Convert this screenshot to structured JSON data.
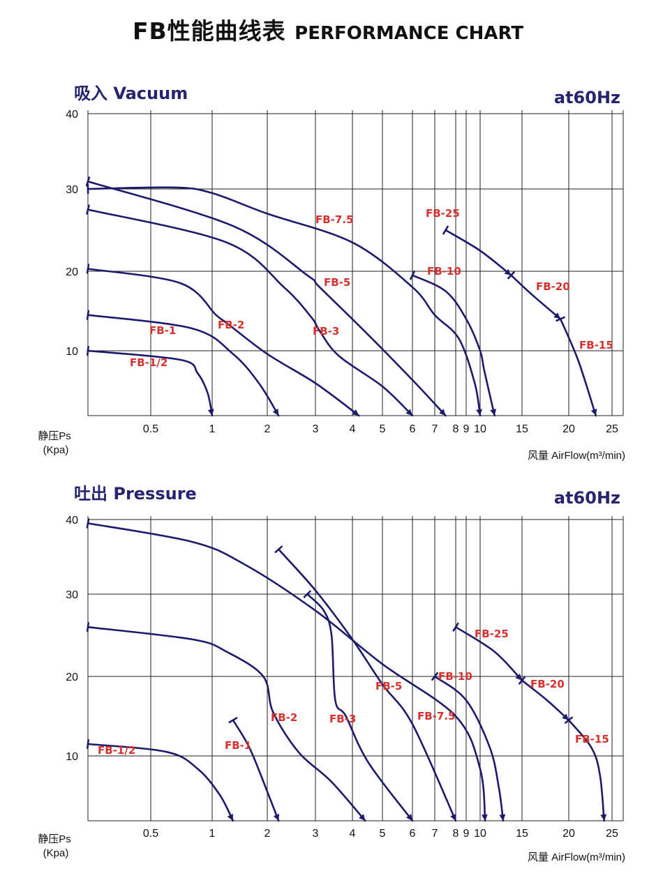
{
  "title": {
    "cn": "FB性能曲线表",
    "en": "PERFORMANCE CHART"
  },
  "chart_data": [
    {
      "type": "line",
      "title": "吸入 Vacuum",
      "subtitle": "at60Hz",
      "ylabel": "静压Ps",
      "yunit": "(Kpa)",
      "xlabel": "风量 AirFlow(m³/min)",
      "ylim": [
        0,
        40
      ],
      "yticks": [
        10,
        20,
        30,
        40
      ],
      "xticks": [
        "0.5",
        "1",
        "2",
        "3",
        "4",
        "5",
        "6",
        "7",
        "8",
        "9",
        "10",
        "15",
        "20",
        "25"
      ],
      "x_scale": "log",
      "series": [
        {
          "name": "FB-1/2",
          "x": [
            0.4,
            0.7,
            0.85,
            0.95,
            1.0
          ],
          "y": [
            10,
            8.6,
            6.5,
            3.5,
            0
          ]
        },
        {
          "name": "FB-1",
          "x": [
            0.4,
            0.8,
            1.3,
            1.8,
            2.2
          ],
          "y": [
            14.5,
            12.8,
            9.5,
            5.0,
            0
          ]
        },
        {
          "name": "FB-2",
          "x": [
            0.4,
            0.7,
            1.05,
            1.2,
            2.0,
            3.0,
            4.2
          ],
          "y": [
            20.3,
            18.5,
            14.5,
            13.5,
            9.5,
            5.0,
            0
          ]
        },
        {
          "name": "FB-3",
          "x": [
            0.4,
            1.2,
            2.3,
            2.9,
            3.1,
            3.6,
            5.0,
            6.0
          ],
          "y": [
            27.5,
            23.5,
            18.0,
            14.2,
            12.5,
            9.2,
            4.5,
            0
          ]
        },
        {
          "name": "FB-5",
          "x": [
            0.4,
            1.3,
            2.8,
            3.1,
            4.5,
            6.0,
            7.5
          ],
          "y": [
            31,
            25.5,
            19.5,
            18.0,
            12.0,
            5.5,
            0
          ]
        },
        {
          "name": "FB-7.5",
          "x": [
            0.4,
            0.65,
            1.0,
            2.0,
            4.0,
            6.0,
            7.0,
            8.3,
            9.6,
            10.0
          ],
          "y": [
            30,
            30.2,
            29.5,
            27.0,
            23.5,
            18.0,
            14.5,
            11.5,
            5.0,
            0
          ]
        },
        {
          "name": "FB-10",
          "x": [
            6.0,
            7.5,
            9.0,
            10.0,
            10.4,
            11.5
          ],
          "y": [
            19.5,
            17.5,
            14.0,
            10.0,
            7.0,
            0
          ]
        },
        {
          "name": "FB-15",
          "x": [
            19.0,
            21.0,
            23.0
          ],
          "y": [
            14.0,
            8.5,
            0
          ]
        },
        {
          "name": "FB-20",
          "x": [
            13.5,
            16.0,
            19.0
          ],
          "y": [
            19.5,
            17.0,
            14.0
          ]
        },
        {
          "name": "FB-25",
          "x": [
            7.5,
            10.0,
            13.5
          ],
          "y": [
            25.0,
            22.5,
            19.5
          ]
        }
      ]
    },
    {
      "type": "line",
      "title": "吐出 Pressure",
      "subtitle": "at60Hz",
      "ylabel": "静压Ps",
      "yunit": "(Kpa)",
      "xlabel": "风量 AirFlow(m³/min)",
      "ylim": [
        0,
        40
      ],
      "yticks": [
        10,
        20,
        30,
        40
      ],
      "xticks": [
        "0.5",
        "1",
        "2",
        "3",
        "4",
        "5",
        "6",
        "7",
        "8",
        "9",
        "10",
        "15",
        "20",
        "25"
      ],
      "x_scale": "log",
      "series": [
        {
          "name": "FB-1/2",
          "x": [
            0.4,
            0.6,
            0.85,
            1.1,
            1.3
          ],
          "y": [
            11.5,
            10.5,
            8.0,
            4.0,
            0
          ]
        },
        {
          "name": "FB-1",
          "x": [
            1.3,
            1.6,
            2.0,
            2.2
          ],
          "y": [
            14.5,
            11.0,
            4.5,
            0
          ]
        },
        {
          "name": "FB-2",
          "x": [
            0.4,
            0.8,
            1.2,
            1.9,
            2.1,
            2.6,
            3.4,
            4.4
          ],
          "y": [
            26,
            24.5,
            23.0,
            20.0,
            15.5,
            10.5,
            6.0,
            0
          ]
        },
        {
          "name": "FB-3",
          "x": [
            2.8,
            3.2,
            3.4,
            3.5,
            3.8,
            4.5,
            6.0
          ],
          "y": [
            30,
            28.0,
            25.0,
            17.0,
            15.0,
            9.0,
            0
          ]
        },
        {
          "name": "FB-5",
          "x": [
            2.2,
            3.0,
            4.0,
            5.0,
            6.0,
            8.0
          ],
          "y": [
            36,
            30.5,
            24.5,
            19.0,
            14.0,
            0
          ]
        },
        {
          "name": "FB-7.5",
          "x": [
            0.4,
            0.8,
            1.5,
            3.0,
            5.0,
            8.0,
            10.0,
            10.5
          ],
          "y": [
            39.5,
            37.0,
            34.0,
            28.0,
            21.5,
            15.0,
            8.0,
            0
          ]
        },
        {
          "name": "FB-10",
          "x": [
            7.0,
            9.0,
            11.0,
            12.0,
            12.5
          ],
          "y": [
            20.0,
            17.0,
            11.0,
            5.0,
            0
          ]
        },
        {
          "name": "FB-15",
          "x": [
            20.0,
            22.5,
            23.5,
            24.0
          ],
          "y": [
            14.5,
            11.0,
            7.0,
            0
          ]
        },
        {
          "name": "FB-20",
          "x": [
            15.0,
            17.5,
            20.0
          ],
          "y": [
            19.5,
            17.0,
            14.5
          ]
        },
        {
          "name": "FB-25",
          "x": [
            8.0,
            11.5,
            15.0
          ],
          "y": [
            26.0,
            23.0,
            19.5
          ]
        }
      ]
    }
  ]
}
